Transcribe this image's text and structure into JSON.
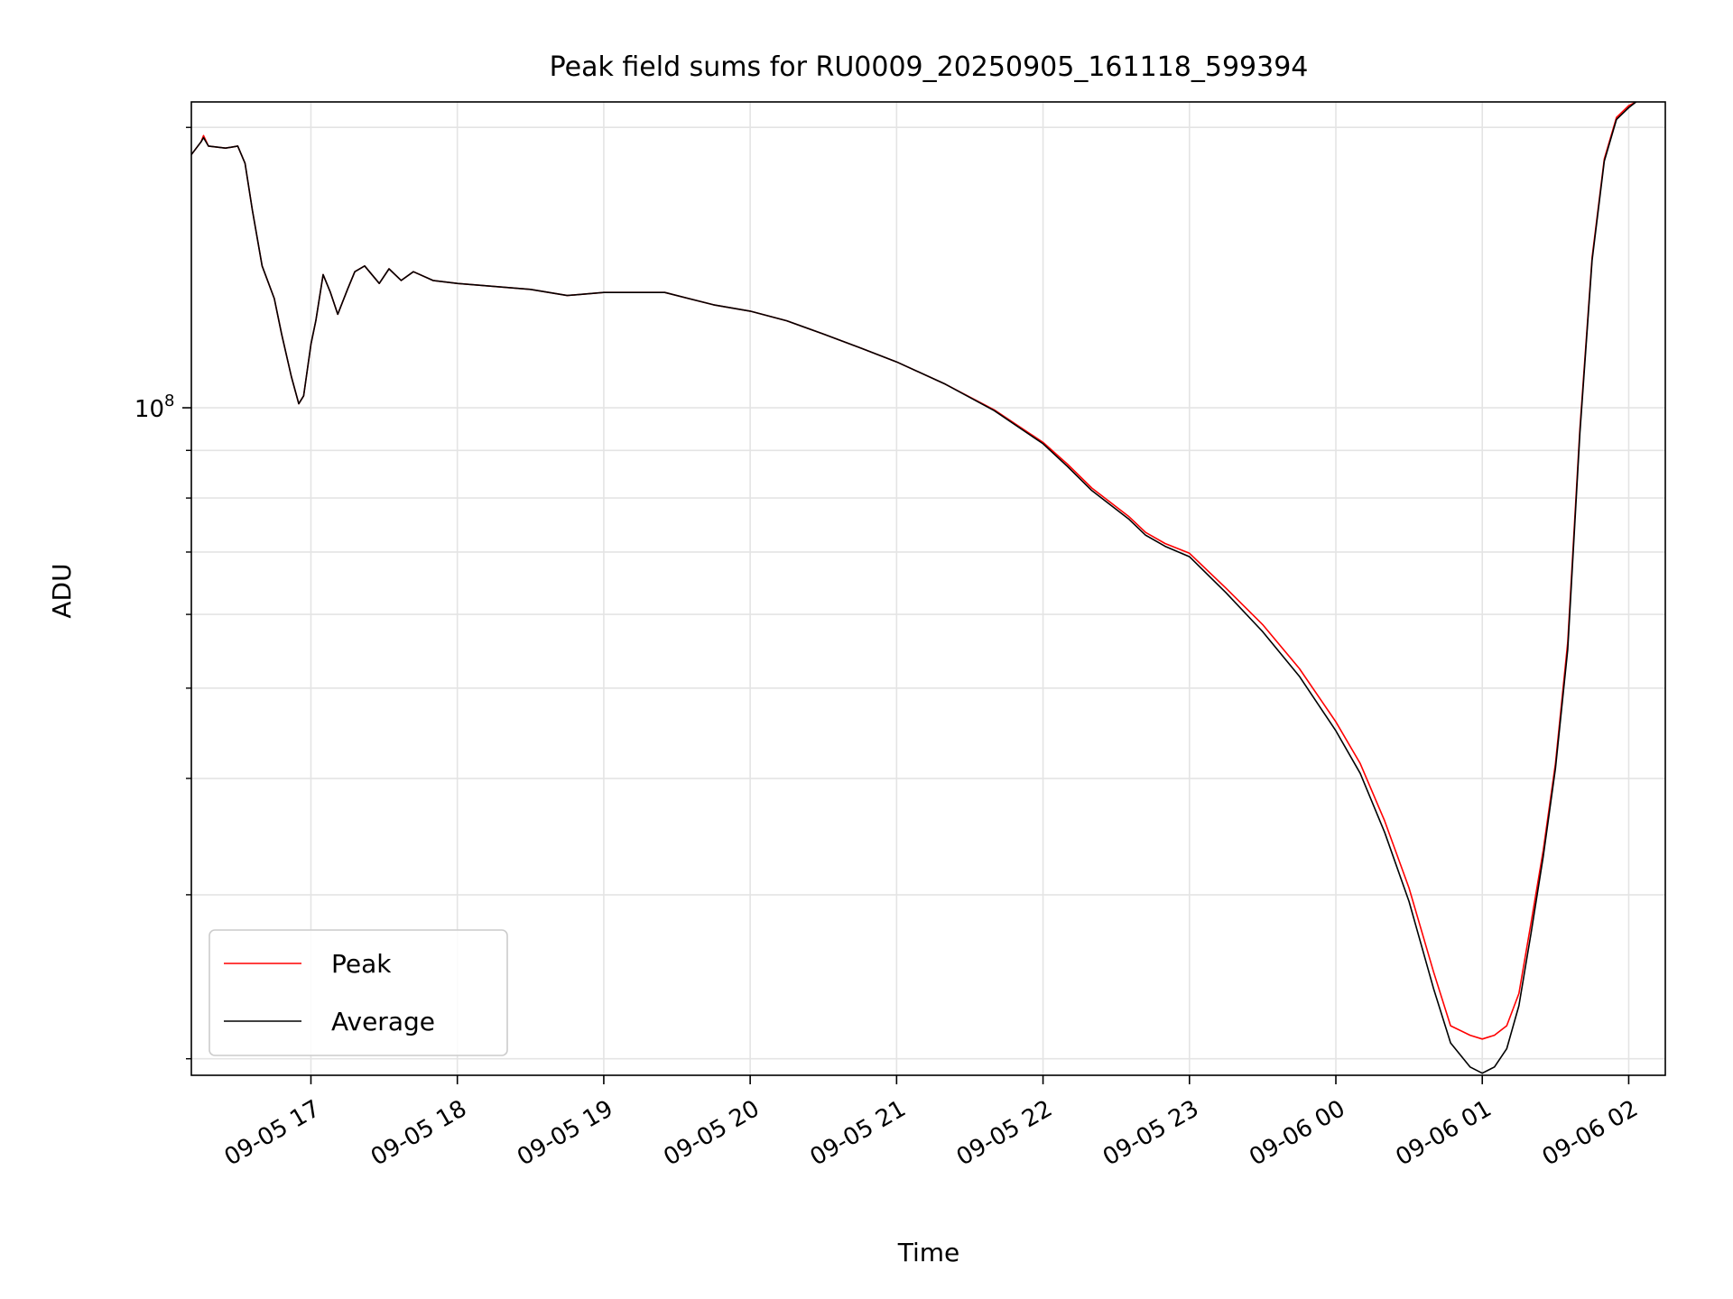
{
  "chart_data": {
    "type": "line",
    "title": "Peak field sums for RU0009_20250905_161118_599394",
    "xlabel": "Time",
    "ylabel": "ADU",
    "y_scale": "log",
    "grid": true,
    "legend_position": "lower-left",
    "xlim": [
      "2025-09-05 16:11",
      "2025-09-06 02:15"
    ],
    "ylim": [
      19200000,
      213000000
    ],
    "x_ticks": [
      {
        "value": "2025-09-05 17:00",
        "label": "09-05 17"
      },
      {
        "value": "2025-09-05 18:00",
        "label": "09-05 18"
      },
      {
        "value": "2025-09-05 19:00",
        "label": "09-05 19"
      },
      {
        "value": "2025-09-05 20:00",
        "label": "09-05 20"
      },
      {
        "value": "2025-09-05 21:00",
        "label": "09-05 21"
      },
      {
        "value": "2025-09-05 22:00",
        "label": "09-05 22"
      },
      {
        "value": "2025-09-05 23:00",
        "label": "09-05 23"
      },
      {
        "value": "2025-09-06 00:00",
        "label": "09-06 00"
      },
      {
        "value": "2025-09-06 01:00",
        "label": "09-06 01"
      },
      {
        "value": "2025-09-06 02:00",
        "label": "09-06 02"
      }
    ],
    "y_major_ticks": [
      {
        "value": 100000000,
        "label_base": "10",
        "label_exp": "8"
      }
    ],
    "y_minor_ticks": [
      20000000,
      30000000,
      40000000,
      50000000,
      60000000,
      70000000,
      80000000,
      90000000,
      200000000
    ],
    "series": [
      {
        "name": "Peak",
        "color": "#ff0000",
        "points": [
          [
            "2025-09-05 16:11",
            187000000
          ],
          [
            "2025-09-05 16:15",
            193000000
          ],
          [
            "2025-09-05 16:16",
            196000000
          ],
          [
            "2025-09-05 16:18",
            191000000
          ],
          [
            "2025-09-05 16:25",
            190000000
          ],
          [
            "2025-09-05 16:30",
            191000000
          ],
          [
            "2025-09-05 16:33",
            183000000
          ],
          [
            "2025-09-05 16:36",
            163000000
          ],
          [
            "2025-09-05 16:40",
            142000000
          ],
          [
            "2025-09-05 16:45",
            131000000
          ],
          [
            "2025-09-05 16:48",
            120000000
          ],
          [
            "2025-09-05 16:52",
            108000000
          ],
          [
            "2025-09-05 16:55",
            101000000
          ],
          [
            "2025-09-05 16:57",
            103000000
          ],
          [
            "2025-09-05 17:00",
            117000000
          ],
          [
            "2025-09-05 17:02",
            124000000
          ],
          [
            "2025-09-05 17:05",
            139000000
          ],
          [
            "2025-09-05 17:08",
            133000000
          ],
          [
            "2025-09-05 17:11",
            126000000
          ],
          [
            "2025-09-05 17:15",
            134000000
          ],
          [
            "2025-09-05 17:18",
            140000000
          ],
          [
            "2025-09-05 17:22",
            142000000
          ],
          [
            "2025-09-05 17:28",
            136000000
          ],
          [
            "2025-09-05 17:32",
            141000000
          ],
          [
            "2025-09-05 17:37",
            137000000
          ],
          [
            "2025-09-05 17:42",
            140000000
          ],
          [
            "2025-09-05 17:50",
            137000000
          ],
          [
            "2025-09-05 18:00",
            136000000
          ],
          [
            "2025-09-05 18:30",
            134000000
          ],
          [
            "2025-09-05 18:45",
            132000000
          ],
          [
            "2025-09-05 19:00",
            133000000
          ],
          [
            "2025-09-05 19:25",
            133000000
          ],
          [
            "2025-09-05 19:45",
            129000000
          ],
          [
            "2025-09-05 20:00",
            127000000
          ],
          [
            "2025-09-05 20:15",
            124000000
          ],
          [
            "2025-09-05 20:30",
            120000000
          ],
          [
            "2025-09-05 20:45",
            116000000
          ],
          [
            "2025-09-05 21:00",
            112000000
          ],
          [
            "2025-09-05 21:20",
            106000000
          ],
          [
            "2025-09-05 21:40",
            99500000
          ],
          [
            "2025-09-05 22:00",
            91800000
          ],
          [
            "2025-09-05 22:10",
            87000000
          ],
          [
            "2025-09-05 22:20",
            82000000
          ],
          [
            "2025-09-05 22:35",
            76500000
          ],
          [
            "2025-09-05 22:42",
            73500000
          ],
          [
            "2025-09-05 22:50",
            71500000
          ],
          [
            "2025-09-05 23:00",
            69800000
          ],
          [
            "2025-09-05 23:15",
            64000000
          ],
          [
            "2025-09-05 23:30",
            58500000
          ],
          [
            "2025-09-05 23:45",
            52500000
          ],
          [
            "2025-09-06 00:00",
            46000000
          ],
          [
            "2025-09-06 00:10",
            41500000
          ],
          [
            "2025-09-06 00:20",
            36000000
          ],
          [
            "2025-09-06 00:30",
            30500000
          ],
          [
            "2025-09-06 00:40",
            24800000
          ],
          [
            "2025-09-06 00:47",
            21700000
          ],
          [
            "2025-09-06 00:55",
            21200000
          ],
          [
            "2025-09-06 01:00",
            21000000
          ],
          [
            "2025-09-06 01:05",
            21200000
          ],
          [
            "2025-09-06 01:10",
            21700000
          ],
          [
            "2025-09-06 01:15",
            23500000
          ],
          [
            "2025-09-06 01:20",
            28000000
          ],
          [
            "2025-09-06 01:25",
            33500000
          ],
          [
            "2025-09-06 01:30",
            41500000
          ],
          [
            "2025-09-06 01:35",
            56000000
          ],
          [
            "2025-09-06 01:40",
            95000000
          ],
          [
            "2025-09-06 01:45",
            145000000
          ],
          [
            "2025-09-06 01:50",
            185000000
          ],
          [
            "2025-09-06 01:55",
            205000000
          ],
          [
            "2025-09-06 02:00",
            211000000
          ],
          [
            "2025-09-06 02:03",
            213000000
          ]
        ]
      },
      {
        "name": "Average",
        "color": "#000000",
        "points": [
          [
            "2025-09-05 16:11",
            187000000
          ],
          [
            "2025-09-05 16:15",
            193000000
          ],
          [
            "2025-09-05 16:16",
            195000000
          ],
          [
            "2025-09-05 16:18",
            191000000
          ],
          [
            "2025-09-05 16:25",
            190000000
          ],
          [
            "2025-09-05 16:30",
            191000000
          ],
          [
            "2025-09-05 16:33",
            183000000
          ],
          [
            "2025-09-05 16:36",
            163000000
          ],
          [
            "2025-09-05 16:40",
            142000000
          ],
          [
            "2025-09-05 16:45",
            131000000
          ],
          [
            "2025-09-05 16:48",
            120000000
          ],
          [
            "2025-09-05 16:52",
            108000000
          ],
          [
            "2025-09-05 16:55",
            101000000
          ],
          [
            "2025-09-05 16:57",
            103000000
          ],
          [
            "2025-09-05 17:00",
            117000000
          ],
          [
            "2025-09-05 17:02",
            124000000
          ],
          [
            "2025-09-05 17:05",
            139000000
          ],
          [
            "2025-09-05 17:08",
            133000000
          ],
          [
            "2025-09-05 17:11",
            126000000
          ],
          [
            "2025-09-05 17:15",
            134000000
          ],
          [
            "2025-09-05 17:18",
            140000000
          ],
          [
            "2025-09-05 17:22",
            142000000
          ],
          [
            "2025-09-05 17:28",
            136000000
          ],
          [
            "2025-09-05 17:32",
            141000000
          ],
          [
            "2025-09-05 17:37",
            137000000
          ],
          [
            "2025-09-05 17:42",
            140000000
          ],
          [
            "2025-09-05 17:50",
            137000000
          ],
          [
            "2025-09-05 18:00",
            136000000
          ],
          [
            "2025-09-05 18:30",
            134000000
          ],
          [
            "2025-09-05 18:45",
            132000000
          ],
          [
            "2025-09-05 19:00",
            133000000
          ],
          [
            "2025-09-05 19:25",
            133000000
          ],
          [
            "2025-09-05 19:45",
            129000000
          ],
          [
            "2025-09-05 20:00",
            127000000
          ],
          [
            "2025-09-05 20:15",
            124000000
          ],
          [
            "2025-09-05 20:30",
            120000000
          ],
          [
            "2025-09-05 20:45",
            116000000
          ],
          [
            "2025-09-05 21:00",
            112000000
          ],
          [
            "2025-09-05 21:20",
            106000000
          ],
          [
            "2025-09-05 21:40",
            99300000
          ],
          [
            "2025-09-05 22:00",
            91500000
          ],
          [
            "2025-09-05 22:10",
            86500000
          ],
          [
            "2025-09-05 22:20",
            81500000
          ],
          [
            "2025-09-05 22:35",
            76000000
          ],
          [
            "2025-09-05 22:42",
            73000000
          ],
          [
            "2025-09-05 22:50",
            71000000
          ],
          [
            "2025-09-05 23:00",
            69200000
          ],
          [
            "2025-09-05 23:15",
            63300000
          ],
          [
            "2025-09-05 23:30",
            57500000
          ],
          [
            "2025-09-05 23:45",
            51500000
          ],
          [
            "2025-09-06 00:00",
            45000000
          ],
          [
            "2025-09-06 00:10",
            40500000
          ],
          [
            "2025-09-06 00:20",
            35000000
          ],
          [
            "2025-09-06 00:30",
            29500000
          ],
          [
            "2025-09-06 00:40",
            23800000
          ],
          [
            "2025-09-06 00:47",
            20800000
          ],
          [
            "2025-09-06 00:55",
            19600000
          ],
          [
            "2025-09-06 01:00",
            19300000
          ],
          [
            "2025-09-06 01:05",
            19600000
          ],
          [
            "2025-09-06 01:10",
            20500000
          ],
          [
            "2025-09-06 01:15",
            22800000
          ],
          [
            "2025-09-06 01:20",
            27300000
          ],
          [
            "2025-09-06 01:25",
            33000000
          ],
          [
            "2025-09-06 01:30",
            41000000
          ],
          [
            "2025-09-06 01:35",
            55000000
          ],
          [
            "2025-09-06 01:40",
            94000000
          ],
          [
            "2025-09-06 01:45",
            144000000
          ],
          [
            "2025-09-06 01:50",
            184000000
          ],
          [
            "2025-09-06 01:55",
            204000000
          ],
          [
            "2025-09-06 02:00",
            210000000
          ],
          [
            "2025-09-06 02:03",
            213000000
          ]
        ]
      }
    ]
  }
}
